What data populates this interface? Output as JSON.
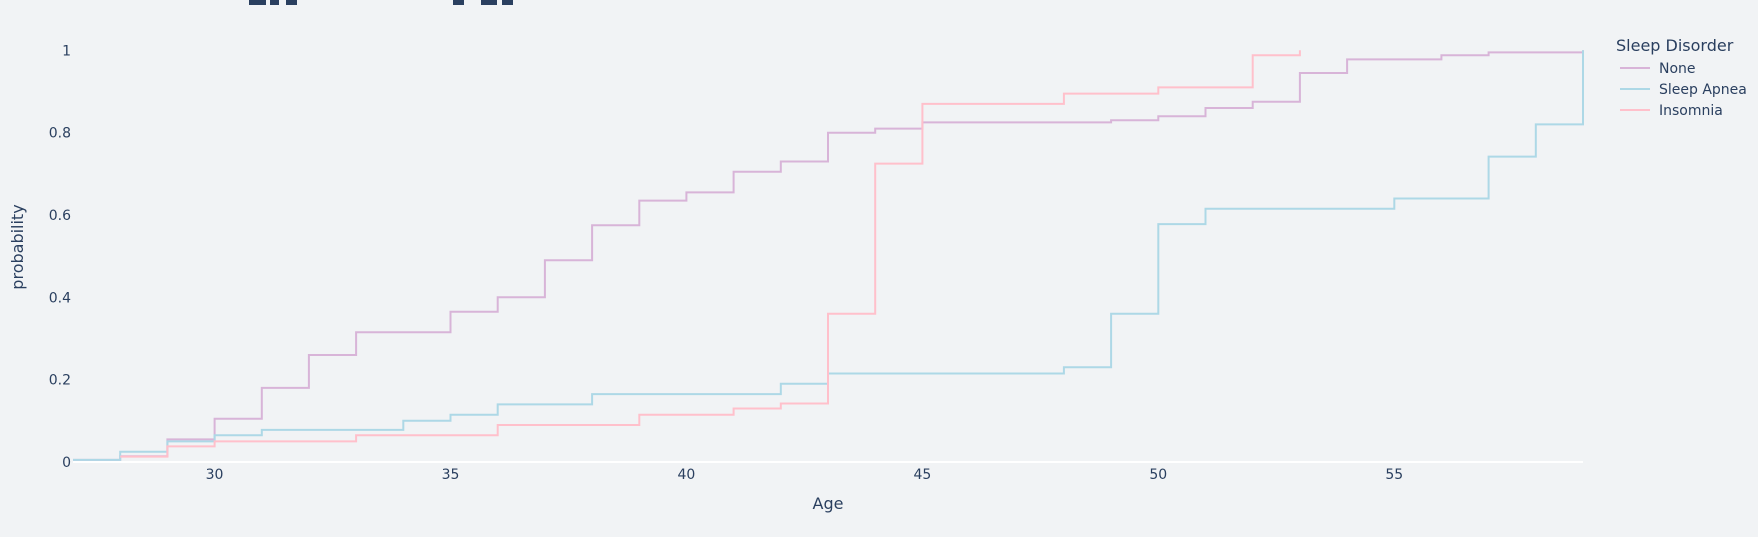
{
  "chart_data": {
    "type": "line",
    "line_shape": "step-cumulative",
    "title": "",
    "xlabel": "Age",
    "ylabel": "probability",
    "xlim": [
      27,
      59
    ],
    "ylim": [
      0,
      1.03
    ],
    "x_ticks": [
      30,
      35,
      40,
      45,
      50,
      55
    ],
    "y_ticks": [
      0,
      0.2,
      0.4,
      0.6,
      0.8,
      1
    ],
    "y_tick_labels": [
      "0",
      "0.2",
      "0.4",
      "0.6",
      "0.8",
      "1"
    ],
    "grid": false,
    "legend": {
      "title": "Sleep Disorder",
      "placement": "top-right outside"
    },
    "series": [
      {
        "name": "None",
        "color": "#d8b4d8",
        "x": [
          27,
          28,
          29,
          30,
          31,
          32,
          33,
          35,
          36,
          37,
          38,
          39,
          40,
          41,
          42,
          43,
          44,
          45,
          49,
          50,
          51,
          52,
          53,
          54,
          56,
          57,
          59
        ],
        "y": [
          0.005,
          0.014,
          0.055,
          0.105,
          0.18,
          0.26,
          0.315,
          0.365,
          0.4,
          0.49,
          0.575,
          0.635,
          0.655,
          0.705,
          0.73,
          0.8,
          0.81,
          0.825,
          0.83,
          0.84,
          0.86,
          0.875,
          0.945,
          0.978,
          0.988,
          0.995,
          1.0
        ]
      },
      {
        "name": "Sleep Apnea",
        "color": "#add8e6",
        "x": [
          27,
          28,
          29,
          30,
          31,
          34,
          35,
          36,
          38,
          42,
          43,
          48,
          49,
          50,
          51,
          55,
          57,
          58,
          59
        ],
        "y": [
          0.005,
          0.025,
          0.05,
          0.065,
          0.078,
          0.1,
          0.115,
          0.14,
          0.165,
          0.19,
          0.215,
          0.23,
          0.36,
          0.578,
          0.615,
          0.64,
          0.742,
          0.82,
          1.0
        ]
      },
      {
        "name": "Insomnia",
        "color": "#ffc0cb",
        "x": [
          28,
          29,
          30,
          33,
          36,
          39,
          41,
          42,
          43,
          44,
          45,
          48,
          50,
          52,
          53
        ],
        "y": [
          0.013,
          0.038,
          0.05,
          0.065,
          0.09,
          0.115,
          0.13,
          0.142,
          0.36,
          0.725,
          0.87,
          0.895,
          0.91,
          0.988,
          1.0
        ]
      }
    ]
  }
}
